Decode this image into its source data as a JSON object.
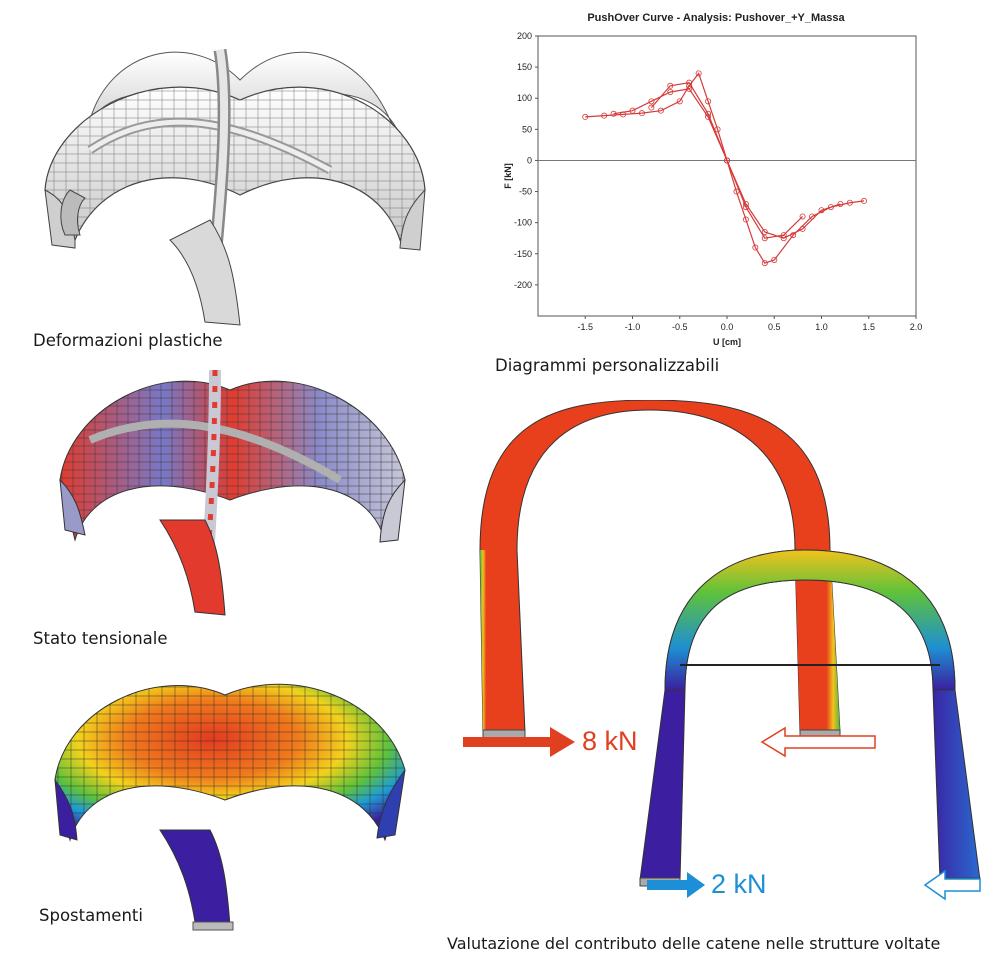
{
  "captions": {
    "plastic": "Deformazioni plastiche",
    "stress": "Stato tensionale",
    "displacement": "Spostamenti",
    "custom_diagrams": "Diagrammi personalizzabili",
    "tie_evaluation": "Valutazione del contributo delle catene nelle strutture voltate"
  },
  "forces": {
    "left": "8 kN",
    "right": "2 kN",
    "left_color": "#e0401f",
    "right_color": "#1c8fd6"
  },
  "chart_data": {
    "type": "line",
    "title": "PushOver Curve - Analysis: Pushover_+Y_Massa",
    "xlabel": "U [cm]",
    "ylabel": "F [kN]",
    "xlim": [
      -2.0,
      2.0
    ],
    "ylim": [
      -250,
      200
    ],
    "xticks": [
      -1.5,
      -1.0,
      -0.5,
      0.0,
      0.5,
      1.0,
      1.5,
      2.0
    ],
    "yticks": [
      200,
      150,
      100,
      50,
      0,
      -50,
      -100,
      -150,
      -200
    ],
    "xtick_labels": [
      "-1.5",
      "-1.0",
      "-0.5",
      "0.0",
      "0.5",
      "1.0",
      "1.5",
      "2.0"
    ],
    "ytick_labels": [
      "200",
      "150",
      "100",
      "50",
      "0",
      "-50",
      "-100",
      "-150",
      "-200"
    ],
    "series_color": "#d63a3a",
    "grid": false,
    "zero_line": true,
    "series": [
      {
        "x": [
          -1.5,
          -1.3,
          -1.1,
          -0.9,
          -0.7,
          -0.5,
          -0.4,
          -0.3,
          -0.2,
          -0.1,
          0.0,
          0.1,
          0.2,
          0.3,
          0.4,
          0.5,
          0.7,
          0.9,
          1.1,
          1.3,
          1.45
        ],
        "y": [
          70,
          72,
          74,
          76,
          80,
          95,
          120,
          140,
          95,
          50,
          0,
          -50,
          -95,
          -140,
          -165,
          -160,
          -120,
          -90,
          -75,
          -68,
          -65
        ]
      },
      {
        "x": [
          -1.2,
          -1.0,
          -0.8,
          -0.6,
          -0.4,
          -0.2,
          0.0,
          0.2,
          0.4,
          0.6,
          0.8,
          1.0,
          1.2
        ],
        "y": [
          75,
          80,
          95,
          110,
          115,
          70,
          0,
          -70,
          -115,
          -125,
          -110,
          -80,
          -70
        ]
      },
      {
        "x": [
          -0.8,
          -0.6,
          -0.4,
          -0.2,
          0.0,
          0.2,
          0.4,
          0.6,
          0.8
        ],
        "y": [
          85,
          120,
          125,
          75,
          0,
          -75,
          -125,
          -120,
          -90
        ]
      }
    ]
  }
}
